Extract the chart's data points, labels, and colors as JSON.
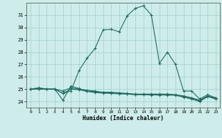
{
  "xlabel": "Humidex (Indice chaleur)",
  "line_color": "#1a6b5e",
  "bg_color": "#cdecea",
  "grid_color": "#9ececa",
  "xlim": [
    -0.5,
    23.5
  ],
  "ylim": [
    23.5,
    32.0
  ],
  "yticks": [
    24,
    25,
    26,
    27,
    28,
    29,
    30,
    31
  ],
  "xticks": [
    0,
    1,
    2,
    3,
    4,
    5,
    6,
    7,
    8,
    9,
    10,
    11,
    12,
    13,
    14,
    15,
    16,
    17,
    18,
    19,
    20,
    21,
    22,
    23
  ],
  "series1": [
    25.0,
    25.1,
    25.0,
    25.0,
    24.65,
    24.85,
    26.5,
    27.5,
    28.3,
    29.8,
    29.85,
    29.65,
    30.95,
    31.55,
    31.75,
    31.0,
    27.1,
    28.0,
    27.0,
    24.85,
    24.85,
    24.2,
    24.55,
    24.3
  ],
  "series2": [
    25.0,
    25.1,
    25.0,
    25.0,
    24.1,
    25.25,
    25.05,
    24.85,
    24.8,
    24.75,
    24.75,
    24.7,
    24.65,
    24.6,
    24.6,
    24.6,
    24.6,
    24.6,
    24.55,
    24.45,
    24.3,
    24.1,
    24.45,
    24.25
  ],
  "series3": [
    25.0,
    25.0,
    25.0,
    25.0,
    24.65,
    25.0,
    24.95,
    24.82,
    24.72,
    24.68,
    24.65,
    24.62,
    24.6,
    24.55,
    24.55,
    24.53,
    24.52,
    24.52,
    24.5,
    24.35,
    24.2,
    24.0,
    24.4,
    24.2
  ],
  "series4": [
    25.0,
    25.02,
    25.0,
    25.0,
    24.85,
    25.1,
    25.0,
    24.9,
    24.85,
    24.72,
    24.7,
    24.66,
    24.62,
    24.58,
    24.57,
    24.56,
    24.56,
    24.56,
    24.53,
    24.38,
    24.25,
    24.05,
    24.42,
    24.22
  ]
}
